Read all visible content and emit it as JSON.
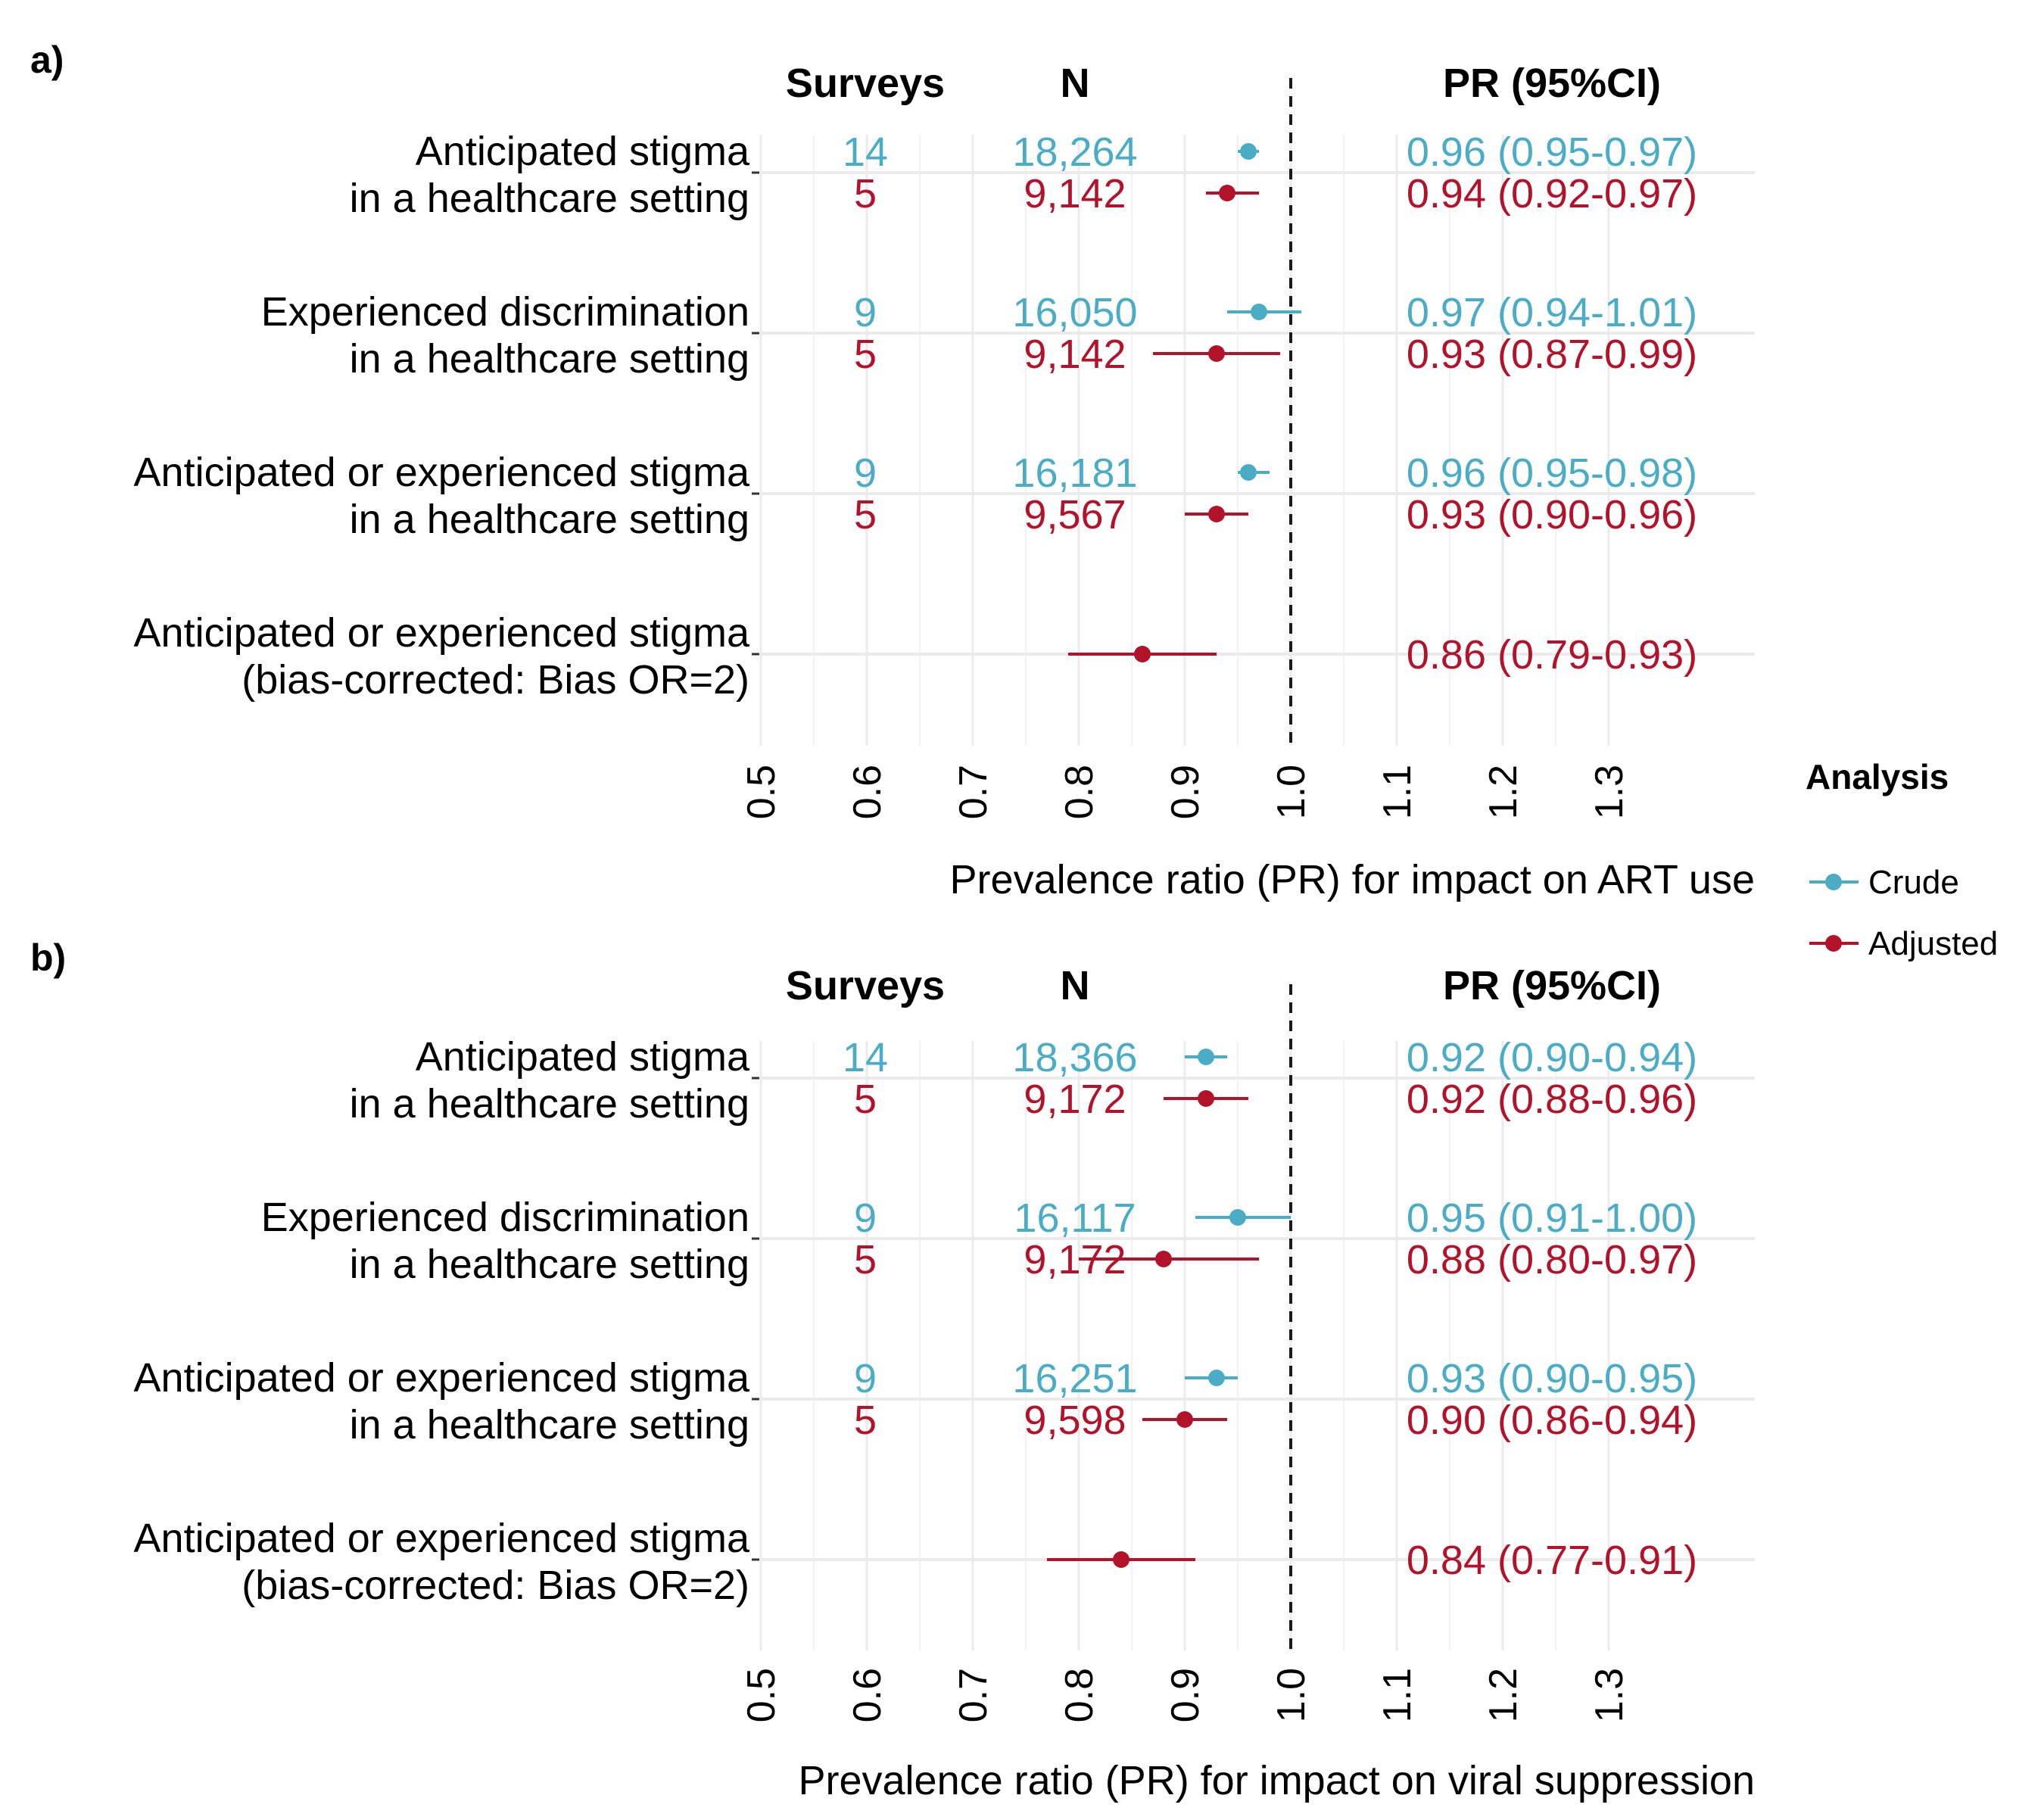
{
  "colors": {
    "crude": "#4bacc6",
    "adjusted": "#b2132a",
    "grid": "#ebebeb",
    "text": "#1a1a1a",
    "refline": "#1a1a1a"
  },
  "legend": {
    "title": "Analysis",
    "items": [
      {
        "label": "Crude",
        "color": "#4bacc6"
      },
      {
        "label": "Adjusted",
        "color": "#b2132a"
      }
    ]
  },
  "chart_data": [
    {
      "type": "forest",
      "panel_label": "a)",
      "xlabel": "Prevalence ratio (PR) for impact on ART use",
      "xlim": [
        0.5,
        1.3
      ],
      "xticks": [
        "0.5",
        "0.6",
        "0.7",
        "0.8",
        "0.9",
        "1.0",
        "1.1",
        "1.2",
        "1.3"
      ],
      "reference_line": 1.0,
      "column_headers": {
        "surveys": "Surveys",
        "n": "N",
        "pr": "PR (95%CI)"
      },
      "rows": [
        {
          "label": [
            "Anticipated stigma",
            "in a healthcare setting"
          ],
          "entries": [
            {
              "analysis": "Crude",
              "surveys": "14",
              "n": "18,264",
              "pr": 0.96,
              "lo": 0.95,
              "hi": 0.97,
              "text": "0.96 (0.95-0.97)"
            },
            {
              "analysis": "Adjusted",
              "surveys": "5",
              "n": "9,142",
              "pr": 0.94,
              "lo": 0.92,
              "hi": 0.97,
              "text": "0.94 (0.92-0.97)"
            }
          ]
        },
        {
          "label": [
            "Experienced discrimination",
            "in a healthcare setting"
          ],
          "entries": [
            {
              "analysis": "Crude",
              "surveys": "9",
              "n": "16,050",
              "pr": 0.97,
              "lo": 0.94,
              "hi": 1.01,
              "text": "0.97 (0.94-1.01)"
            },
            {
              "analysis": "Adjusted",
              "surveys": "5",
              "n": "9,142",
              "pr": 0.93,
              "lo": 0.87,
              "hi": 0.99,
              "text": "0.93 (0.87-0.99)"
            }
          ]
        },
        {
          "label": [
            "Anticipated or experienced stigma",
            "in a healthcare setting"
          ],
          "entries": [
            {
              "analysis": "Crude",
              "surveys": "9",
              "n": "16,181",
              "pr": 0.96,
              "lo": 0.95,
              "hi": 0.98,
              "text": "0.96 (0.95-0.98)"
            },
            {
              "analysis": "Adjusted",
              "surveys": "5",
              "n": "9,567",
              "pr": 0.93,
              "lo": 0.9,
              "hi": 0.96,
              "text": "0.93 (0.90-0.96)"
            }
          ]
        },
        {
          "label": [
            "Anticipated or experienced stigma",
            "(bias-corrected: Bias OR=2)"
          ],
          "entries": [
            {
              "analysis": "Adjusted",
              "surveys": "",
              "n": "",
              "pr": 0.86,
              "lo": 0.79,
              "hi": 0.93,
              "text": "0.86 (0.79-0.93)"
            }
          ]
        }
      ]
    },
    {
      "type": "forest",
      "panel_label": "b)",
      "xlabel": "Prevalence ratio (PR) for impact on viral suppression",
      "xlim": [
        0.5,
        1.3
      ],
      "xticks": [
        "0.5",
        "0.6",
        "0.7",
        "0.8",
        "0.9",
        "1.0",
        "1.1",
        "1.2",
        "1.3"
      ],
      "reference_line": 1.0,
      "column_headers": {
        "surveys": "Surveys",
        "n": "N",
        "pr": "PR (95%CI)"
      },
      "rows": [
        {
          "label": [
            "Anticipated stigma",
            "in a healthcare setting"
          ],
          "entries": [
            {
              "analysis": "Crude",
              "surveys": "14",
              "n": "18,366",
              "pr": 0.92,
              "lo": 0.9,
              "hi": 0.94,
              "text": "0.92 (0.90-0.94)"
            },
            {
              "analysis": "Adjusted",
              "surveys": "5",
              "n": "9,172",
              "pr": 0.92,
              "lo": 0.88,
              "hi": 0.96,
              "text": "0.92 (0.88-0.96)"
            }
          ]
        },
        {
          "label": [
            "Experienced discrimination",
            "in a healthcare setting"
          ],
          "entries": [
            {
              "analysis": "Crude",
              "surveys": "9",
              "n": "16,117",
              "pr": 0.95,
              "lo": 0.91,
              "hi": 1.0,
              "text": "0.95 (0.91-1.00)"
            },
            {
              "analysis": "Adjusted",
              "surveys": "5",
              "n": "9,172",
              "pr": 0.88,
              "lo": 0.8,
              "hi": 0.97,
              "text": "0.88 (0.80-0.97)"
            }
          ]
        },
        {
          "label": [
            "Anticipated or experienced stigma",
            "in a healthcare setting"
          ],
          "entries": [
            {
              "analysis": "Crude",
              "surveys": "9",
              "n": "16,251",
              "pr": 0.93,
              "lo": 0.9,
              "hi": 0.95,
              "text": "0.93 (0.90-0.95)"
            },
            {
              "analysis": "Adjusted",
              "surveys": "5",
              "n": "9,598",
              "pr": 0.9,
              "lo": 0.86,
              "hi": 0.94,
              "text": "0.90 (0.86-0.94)"
            }
          ]
        },
        {
          "label": [
            "Anticipated or experienced stigma",
            "(bias-corrected: Bias OR=2)"
          ],
          "entries": [
            {
              "analysis": "Adjusted",
              "surveys": "",
              "n": "",
              "pr": 0.84,
              "lo": 0.77,
              "hi": 0.91,
              "text": "0.84 (0.77-0.91)"
            }
          ]
        }
      ]
    }
  ]
}
